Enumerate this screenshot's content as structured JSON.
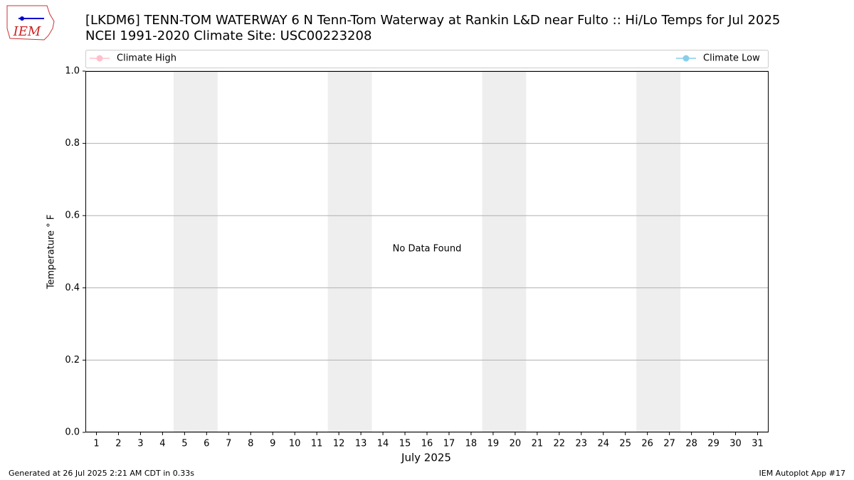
{
  "logo": "IEM",
  "chart_data": {
    "type": "line",
    "title": "[LKDM6] TENN-TOM WATERWAY 6 N Tenn-Tom Waterway at Rankin L&D near Fulto :: Hi/Lo Temps for Jul 2025",
    "subtitle": "NCEI 1991-2020 Climate Site: USC00223208",
    "x": [
      1,
      2,
      3,
      4,
      5,
      6,
      7,
      8,
      9,
      10,
      11,
      12,
      13,
      14,
      15,
      16,
      17,
      18,
      19,
      20,
      21,
      22,
      23,
      24,
      25,
      26,
      27,
      28,
      29,
      30,
      31
    ],
    "xlim": [
      0.5,
      31.5
    ],
    "xticks": [
      1,
      2,
      3,
      4,
      5,
      6,
      7,
      8,
      9,
      10,
      11,
      12,
      13,
      14,
      15,
      16,
      17,
      18,
      19,
      20,
      21,
      22,
      23,
      24,
      25,
      26,
      27,
      28,
      29,
      30,
      31
    ],
    "xlabel": "July 2025",
    "ylabel": "Temperature ° F",
    "ylim": [
      0,
      1
    ],
    "yticks": [
      {
        "value": 0,
        "label": "0.0"
      },
      0.2,
      0.4,
      0.6,
      0.8,
      {
        "value": 1,
        "label": "1.0"
      }
    ],
    "grid": true,
    "weekend_spans": [
      [
        4.5,
        6.5
      ],
      [
        11.5,
        13.5
      ],
      [
        18.5,
        20.5
      ],
      [
        25.5,
        27.5
      ]
    ],
    "annotation": "No Data Found",
    "series": [
      {
        "name": "Climate High",
        "color": "#ffc0cb",
        "values": [
          null,
          null,
          null,
          null,
          null,
          null,
          null,
          null,
          null,
          null,
          null,
          null,
          null,
          null,
          null,
          null,
          null,
          null,
          null,
          null,
          null,
          null,
          null,
          null,
          null,
          null,
          null,
          null,
          null,
          null,
          null
        ]
      },
      {
        "name": "Climate Low",
        "color": "#87ceeb",
        "values": [
          null,
          null,
          null,
          null,
          null,
          null,
          null,
          null,
          null,
          null,
          null,
          null,
          null,
          null,
          null,
          null,
          null,
          null,
          null,
          null,
          null,
          null,
          null,
          null,
          null,
          null,
          null,
          null,
          null,
          null,
          null
        ]
      }
    ]
  },
  "footer": {
    "left": "Generated at 26 Jul 2025 2:21 AM CDT in 0.33s",
    "right": "IEM Autoplot App #17"
  }
}
